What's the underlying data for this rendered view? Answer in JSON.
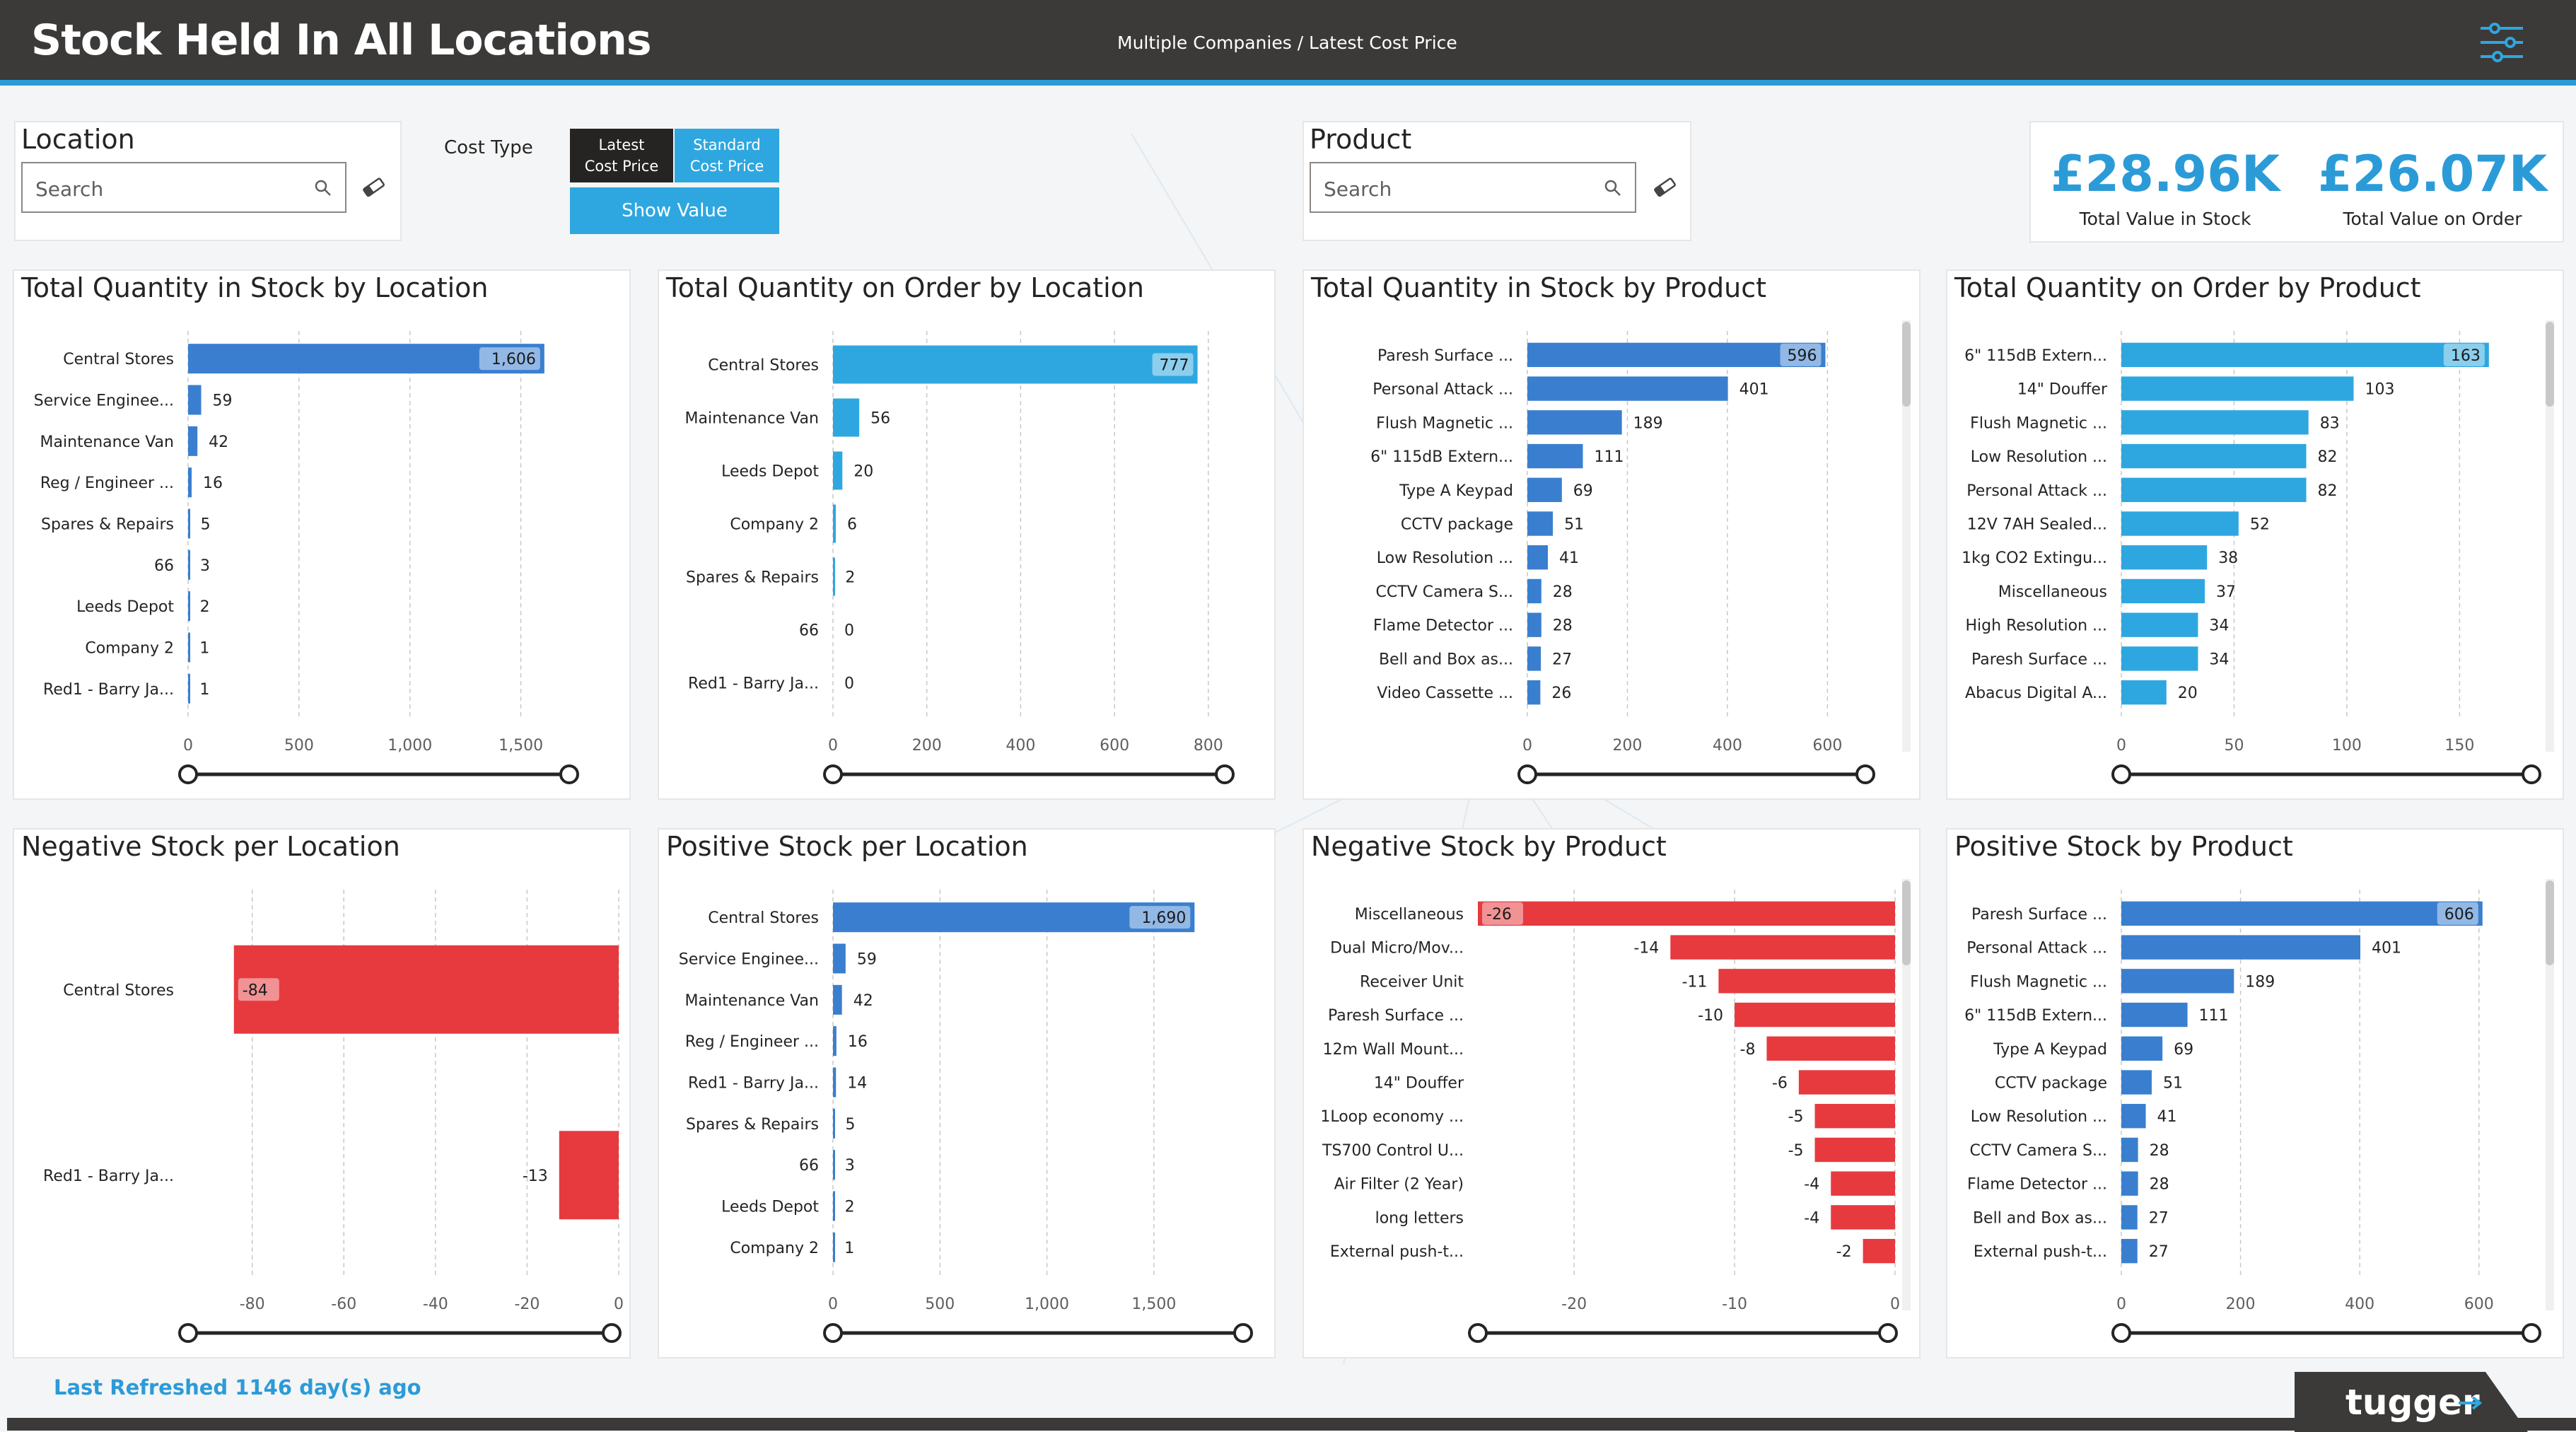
{
  "header": {
    "title": "Stock Held In All Locations",
    "subtitle": "Multiple Companies /  Latest Cost Price"
  },
  "location_slicer": {
    "title": "Location",
    "placeholder": "Search"
  },
  "product_slicer": {
    "title": "Product",
    "placeholder": "Search"
  },
  "cost_type": {
    "label": "Cost Type",
    "options": [
      {
        "line1": "Latest",
        "line2": "Cost Price",
        "selected": true
      },
      {
        "line1": "Standard",
        "line2": "Cost Price",
        "selected": false
      }
    ],
    "show_value": "Show Value"
  },
  "kpis": [
    {
      "value": "£28.96K",
      "label": "Total Value in Stock"
    },
    {
      "value": "£26.07K",
      "label": "Total Value on Order"
    }
  ],
  "colors": {
    "blue_dark": "#3a7fcf",
    "blue_light": "#2ea7e0",
    "red": "#e63a3f",
    "header": "#3b3a39"
  },
  "chart_data": [
    {
      "id": "c1",
      "type": "bar",
      "orientation": "horizontal",
      "title": "Total Quantity in Stock by Location",
      "categories": [
        "Central Stores",
        "Service Enginee...",
        "Maintenance Van",
        "Reg / Engineer ...",
        "Spares & Repairs",
        "66",
        "Leeds Depot",
        "Company 2",
        "Red1 - Barry Ja..."
      ],
      "values": [
        1606,
        59,
        42,
        16,
        5,
        3,
        2,
        1,
        1
      ],
      "labels": [
        "1,606",
        "59",
        "42",
        "16",
        "5",
        "3",
        "2",
        "1",
        "1"
      ],
      "xlim": [
        0,
        1750
      ],
      "ticks": [
        0,
        500,
        1000,
        1500
      ],
      "tick_labels": [
        "0",
        "500",
        "1,000",
        "1,500"
      ],
      "color": "#3a7fcf",
      "grid": true
    },
    {
      "id": "c2",
      "type": "bar",
      "orientation": "horizontal",
      "title": "Total Quantity on Order by Location",
      "categories": [
        "Central Stores",
        "Maintenance Van",
        "Leeds Depot",
        "Company 2",
        "Spares & Repairs",
        "66",
        "Red1 - Barry Ja..."
      ],
      "values": [
        777,
        56,
        20,
        6,
        2,
        0,
        0
      ],
      "labels": [
        "777",
        "56",
        "20",
        "6",
        "2",
        "0",
        "0"
      ],
      "xlim": [
        0,
        850
      ],
      "ticks": [
        0,
        200,
        400,
        600,
        800
      ],
      "tick_labels": [
        "0",
        "200",
        "400",
        "600",
        "800"
      ],
      "color": "#2ea7e0",
      "grid": true
    },
    {
      "id": "c3",
      "type": "bar",
      "orientation": "horizontal",
      "title": "Total Quantity in Stock by Product",
      "categories": [
        "Paresh Surface ...",
        "Personal Attack ...",
        "Flush Magnetic ...",
        "6\" 115dB Extern...",
        "Type A Keypad",
        "CCTV package",
        "Low Resolution ...",
        "CCTV Camera S...",
        "Flame Detector ...",
        "Bell and Box as...",
        "Video Cassette ..."
      ],
      "values": [
        596,
        401,
        189,
        111,
        69,
        51,
        41,
        28,
        28,
        27,
        26
      ],
      "labels": [
        "596",
        "401",
        "189",
        "111",
        "69",
        "51",
        "41",
        "28",
        "28",
        "27",
        "26"
      ],
      "xlim": [
        0,
        690
      ],
      "ticks": [
        0,
        200,
        400,
        600
      ],
      "tick_labels": [
        "0",
        "200",
        "400",
        "600"
      ],
      "color": "#3a7fcf",
      "grid": true
    },
    {
      "id": "c4",
      "type": "bar",
      "orientation": "horizontal",
      "title": "Total Quantity on Order by Product",
      "categories": [
        "6\" 115dB Extern...",
        "14\" Douffer",
        "Flush Magnetic ...",
        "Low Resolution ...",
        "Personal Attack ...",
        "12V 7AH Sealed...",
        "1kg CO2 Extingu...",
        "Miscellaneous",
        "High Resolution ...",
        "Paresh Surface ...",
        "Abacus Digital A..."
      ],
      "values": [
        163,
        103,
        83,
        82,
        82,
        52,
        38,
        37,
        34,
        34,
        20
      ],
      "labels": [
        "163",
        "103",
        "83",
        "82",
        "82",
        "52",
        "38",
        "37",
        "34",
        "34",
        "20"
      ],
      "xlim": [
        0,
        185
      ],
      "ticks": [
        0,
        50,
        100,
        150
      ],
      "tick_labels": [
        "0",
        "50",
        "100",
        "150"
      ],
      "color": "#2ea7e0",
      "grid": true
    },
    {
      "id": "c5",
      "type": "bar",
      "orientation": "horizontal",
      "title": "Negative Stock per Location",
      "categories": [
        "Central Stores",
        "Red1 - Barry Ja..."
      ],
      "values": [
        -84,
        -13
      ],
      "labels": [
        "-84",
        "-13"
      ],
      "xlim": [
        -94,
        0
      ],
      "ticks": [
        -80,
        -60,
        -40,
        -20,
        0
      ],
      "tick_labels": [
        "-80",
        "-60",
        "-40",
        "-20",
        "0"
      ],
      "color": "#e63a3f",
      "grid": true
    },
    {
      "id": "c6",
      "type": "bar",
      "orientation": "horizontal",
      "title": "Positive Stock per Location",
      "categories": [
        "Central Stores",
        "Service Enginee...",
        "Maintenance Van",
        "Reg / Engineer ...",
        "Red1 - Barry Ja...",
        "Spares & Repairs",
        "66",
        "Leeds Depot",
        "Company 2"
      ],
      "values": [
        1690,
        59,
        42,
        16,
        14,
        5,
        3,
        2,
        1
      ],
      "labels": [
        "1,690",
        "59",
        "42",
        "16",
        "14",
        "5",
        "3",
        "2",
        "1"
      ],
      "xlim": [
        0,
        1950
      ],
      "ticks": [
        0,
        500,
        1000,
        1500
      ],
      "tick_labels": [
        "0",
        "500",
        "1,000",
        "1,500"
      ],
      "color": "#3a7fcf",
      "grid": true
    },
    {
      "id": "c7",
      "type": "bar",
      "orientation": "horizontal",
      "title": "Negative Stock by Product",
      "categories": [
        "Miscellaneous",
        "Dual Micro/Mov...",
        "Receiver Unit",
        "Paresh Surface ...",
        "12m Wall Mount...",
        "14\" Douffer",
        "1Loop economy ...",
        "TS700 Control U...",
        "Air Filter (2 Year)",
        "long letters",
        "External push-t..."
      ],
      "values": [
        -26,
        -14,
        -11,
        -10,
        -8,
        -6,
        -5,
        -5,
        -4,
        -4,
        -2
      ],
      "labels": [
        "-26",
        "-14",
        "-11",
        "-10",
        "-8",
        "-6",
        "-5",
        "-5",
        "-4",
        "-4",
        "-2"
      ],
      "xlim": [
        -26,
        0
      ],
      "ticks": [
        -20,
        -10,
        0
      ],
      "tick_labels": [
        "-20",
        "-10",
        "0"
      ],
      "color": "#e63a3f",
      "grid": true
    },
    {
      "id": "c8",
      "type": "bar",
      "orientation": "horizontal",
      "title": "Positive Stock by Product",
      "categories": [
        "Paresh Surface ...",
        "Personal Attack ...",
        "Flush Magnetic ...",
        "6\" 115dB Extern...",
        "Type A Keypad",
        "CCTV package",
        "Low Resolution ...",
        "CCTV Camera S...",
        "Flame Detector ...",
        "Bell and Box as...",
        "External push-t..."
      ],
      "values": [
        606,
        401,
        189,
        111,
        69,
        51,
        41,
        28,
        28,
        27,
        27
      ],
      "labels": [
        "606",
        "401",
        "189",
        "111",
        "69",
        "51",
        "41",
        "28",
        "28",
        "27",
        "27"
      ],
      "xlim": [
        0,
        700
      ],
      "ticks": [
        0,
        200,
        400,
        600
      ],
      "tick_labels": [
        "0",
        "200",
        "400",
        "600"
      ],
      "color": "#3a7fcf",
      "grid": true
    }
  ],
  "footer": {
    "refreshed": "Last Refreshed 1146 day(s) ago",
    "brand": "tugger"
  }
}
